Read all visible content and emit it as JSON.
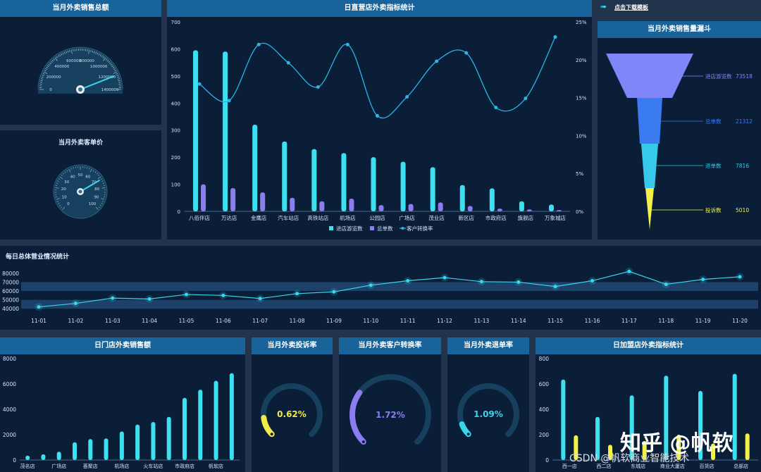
{
  "panels": {
    "sales_total_title": "当月外卖销售总额",
    "unit_price_title": "当月外卖客单价",
    "main_chart_title": "日直营店外卖指标统计",
    "download_link": "点击下载模板",
    "funnel_title": "当月外卖销售量漏斗",
    "daily_title": "每日总体营业情况统计",
    "store_sales_title": "日门店外卖销售额",
    "complaint_title": "当月外卖投诉率",
    "conversion_title": "当月外卖客户转换率",
    "refund_title": "当月外卖退单率",
    "franchise_title": "日加盟店外卖指标统计"
  },
  "gauge_sales": {
    "ticks": [
      "0",
      "200000",
      "400000",
      "600000",
      "800000",
      "1000000",
      "1200000",
      "1400000"
    ],
    "value_fraction": 0.88
  },
  "gauge_price": {
    "ticks": [
      "0",
      "10",
      "20",
      "30",
      "40",
      "50",
      "60",
      "70",
      "80",
      "90",
      "100"
    ],
    "value_fraction": 0.72
  },
  "main_chart": {
    "y_left_ticks": [
      "0",
      "100",
      "200",
      "300",
      "400",
      "500",
      "600",
      "700"
    ],
    "y_right_ticks": [
      "0%",
      "5%",
      "10%",
      "15%",
      "20%",
      "25%"
    ],
    "categories": [
      "八佰伴店",
      "万达店",
      "金鹰店",
      "汽车站店",
      "高铁站店",
      "机场店",
      "公园店",
      "广场店",
      "茂业店",
      "新区店",
      "市政府店",
      "旗舰店",
      "万象城店"
    ],
    "legend": [
      "进店游览数",
      "总单数",
      "客户转换率"
    ],
    "colors": {
      "visits": "#3de0f0",
      "orders": "#8b7cf0",
      "rate": "#29b6e8"
    }
  },
  "chart_data": [
    {
      "type": "bar",
      "title": "日直营店外卖指标统计",
      "categories": [
        "八佰伴店",
        "万达店",
        "金鹰店",
        "汽车站店",
        "高铁站店",
        "机场店",
        "公园店",
        "广场店",
        "茂业店",
        "新区店",
        "市政府店",
        "旗舰店",
        "万象城店"
      ],
      "series": [
        {
          "name": "进店游览数",
          "values": [
            595,
            590,
            320,
            258,
            230,
            215,
            200,
            183,
            163,
            97,
            85,
            37,
            25
          ]
        },
        {
          "name": "总单数",
          "values": [
            100,
            86,
            70,
            50,
            37,
            47,
            23,
            27,
            33,
            20,
            10,
            7,
            5
          ]
        },
        {
          "name": "客户转换率",
          "values": [
            16.8,
            14.6,
            22.0,
            19.6,
            16.4,
            22.0,
            12.6,
            15.1,
            19.8,
            20.9,
            13.7,
            14.9,
            23.0
          ]
        }
      ],
      "ylim": [
        0,
        700
      ],
      "y2lim": [
        0,
        25
      ]
    },
    {
      "type": "line",
      "title": "每日总体营业情况统计",
      "x": [
        "11-01",
        "11-02",
        "11-03",
        "11-04",
        "11-05",
        "11-06",
        "11-07",
        "11-08",
        "11-09",
        "11-10",
        "11-11",
        "11-12",
        "11-13",
        "11-14",
        "11-15",
        "11-16",
        "11-17",
        "11-18",
        "11-19",
        "11-20"
      ],
      "values": [
        42000,
        46000,
        52000,
        51000,
        56000,
        55000,
        51500,
        57000,
        59000,
        66500,
        71500,
        75000,
        70500,
        70000,
        65000,
        71500,
        82000,
        67500,
        73000,
        76000
      ],
      "y_ticks": [
        "40000",
        "50000",
        "60000",
        "70000",
        "80000"
      ],
      "ylim": [
        37000,
        87000
      ]
    },
    {
      "type": "bar",
      "title": "日门店外卖销售额",
      "categories": [
        "茂名店",
        "",
        "广场店",
        "",
        "荟聚店",
        "",
        "机场店",
        "",
        "火车站店",
        "",
        "市政府店",
        "",
        "帆软店",
        ""
      ],
      "values": [
        350,
        450,
        650,
        1400,
        1650,
        1700,
        2250,
        2800,
        3000,
        3400,
        4900,
        5550,
        6250,
        6850
      ],
      "y_ticks": [
        "0",
        "2000",
        "4000",
        "6000",
        "8000"
      ],
      "ylim": [
        0,
        8000
      ]
    },
    {
      "type": "bar",
      "title": "日加盟店外卖指标统计",
      "categories": [
        "西一店",
        "西二店",
        "东城店",
        "商业大厦店",
        "百货店",
        "总部店"
      ],
      "series": [
        {
          "values": [
            635,
            340,
            510,
            665,
            545,
            680
          ]
        },
        {
          "values": [
            195,
            120,
            150,
            200,
            130,
            210
          ]
        }
      ],
      "y_ticks": [
        "0",
        "200",
        "400",
        "600",
        "800"
      ],
      "ylim": [
        0,
        800
      ]
    }
  ],
  "funnel": {
    "stages": [
      {
        "label": "进店游览数",
        "value": "73518",
        "color": "#7f86f8"
      },
      {
        "label": "总单数",
        "value": "21312",
        "color": "#3a7bf0"
      },
      {
        "label": "退单数",
        "value": "7816",
        "color": "#36c9ea"
      },
      {
        "label": "投诉数",
        "value": "5010",
        "color": "#f2f04a"
      }
    ]
  },
  "rings": {
    "complaint": {
      "value_text": "0.62%",
      "fraction": 0.14,
      "color": "#f2e94a"
    },
    "conversion": {
      "value_text": "1.72%",
      "fraction": 0.3,
      "color": "#8b7cf0"
    },
    "refund": {
      "value_text": "1.09%",
      "fraction": 0.09,
      "color": "#3ad6ec"
    }
  },
  "watermark": {
    "logo": "知乎 @帆软",
    "text": "CSDN @帆软商业智能技术"
  }
}
